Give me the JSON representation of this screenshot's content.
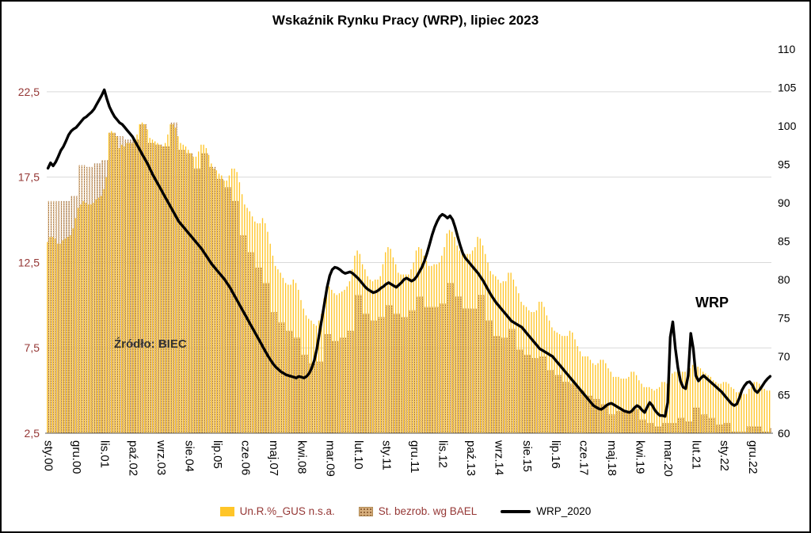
{
  "chart": {
    "title": "Wskaźnik Rynku Pracy (WRP), lipiec 2023",
    "source_annotation": "Źródło: BIEC",
    "line_annotation": "WRP",
    "legend": [
      {
        "label": "Un.R.%_GUS n.s.a.",
        "swatch": "bar-yellow",
        "color": "#FFC528",
        "text_color": "#953735"
      },
      {
        "label": "St. bezrob. wg BAEL",
        "swatch": "bar-tan-dotted",
        "color": "#D8B07E",
        "text_color": "#953735"
      },
      {
        "label": "WRP_2020",
        "swatch": "line-black",
        "color": "#000000",
        "text_color": "#000000"
      }
    ]
  },
  "chart_data": {
    "type": "combo",
    "x_unit": "month",
    "x_start": "sty.00",
    "x_end": "lip.23",
    "n_points": 283,
    "x_tick_step": 11,
    "x_tick_labels": [
      "sty.00",
      "gru.00",
      "lis.01",
      "paź.02",
      "wrz.03",
      "sie.04",
      "lip.05",
      "cze.06",
      "maj.07",
      "kwi.08",
      "mar.09",
      "lut.10",
      "sty.11",
      "gru.11",
      "lis.12",
      "paź.13",
      "wrz.14",
      "sie.15",
      "lip.16",
      "cze.17",
      "maj.18",
      "kwi.19",
      "mar.20",
      "lut.21",
      "sty.22",
      "gru.22"
    ],
    "left_axis": {
      "ticks": [
        "2,5",
        "7,5",
        "12,5",
        "17,5",
        "22,5"
      ],
      "tick_values": [
        2.5,
        7.5,
        12.5,
        17.5,
        22.5
      ],
      "range": [
        2.5,
        25
      ],
      "color": "#953735"
    },
    "right_axis": {
      "ticks": [
        "60",
        "65",
        "70",
        "75",
        "80",
        "85",
        "90",
        "95",
        "100",
        "105",
        "110"
      ],
      "tick_values": [
        60,
        65,
        70,
        75,
        80,
        85,
        90,
        95,
        100,
        105,
        110
      ],
      "range": [
        60,
        110
      ],
      "color": "#000000"
    },
    "grid": true,
    "legend_position": "bottom",
    "series": [
      {
        "name": "Un.R.%_GUS n.s.a.",
        "type": "bar",
        "axis": "left",
        "color": "#FFC528",
        "values": [
          13.7,
          14,
          14,
          13.9,
          13.6,
          13.6,
          13.8,
          13.9,
          14,
          14.1,
          14.5,
          15.1,
          15.7,
          15.9,
          16.1,
          16,
          15.9,
          15.9,
          16,
          16.2,
          16.3,
          16.4,
          16.8,
          17.5,
          20.1,
          20.2,
          20.1,
          19.9,
          19.2,
          19.4,
          19.3,
          19.5,
          19.5,
          19.5,
          19.7,
          20,
          20.6,
          20.7,
          20.6,
          20.3,
          19.8,
          19.7,
          19.6,
          19.5,
          19.4,
          19.3,
          19.5,
          20,
          20.6,
          20.6,
          20.4,
          19.9,
          19.5,
          19.4,
          19.3,
          19.1,
          18.9,
          18.7,
          18.7,
          19,
          19.4,
          19.4,
          19.2,
          18.8,
          18.3,
          18,
          17.9,
          17.7,
          17.6,
          17.3,
          17.3,
          17.6,
          18,
          18,
          17.8,
          17.2,
          16.5,
          15.9,
          15.7,
          15.5,
          15.2,
          14.9,
          14.8,
          14.8,
          15.1,
          14.8,
          14.3,
          13.6,
          12.9,
          12.3,
          12.1,
          11.9,
          11.6,
          11.3,
          11.2,
          11.2,
          11.5,
          11.3,
          10.9,
          10.3,
          9.8,
          9.4,
          9.2,
          9.1,
          8.9,
          8.8,
          9.1,
          9.5,
          10.4,
          10.9,
          11.1,
          10.9,
          10.7,
          10.6,
          10.7,
          10.8,
          10.9,
          11.1,
          11.4,
          12.1,
          12.9,
          13.2,
          13,
          12.4,
          12.1,
          11.7,
          11.5,
          11.4,
          11.5,
          11.5,
          11.7,
          12.4,
          13.1,
          13.4,
          13.3,
          12.8,
          12.4,
          11.9,
          11.8,
          11.8,
          11.8,
          11.8,
          12.1,
          12.5,
          13.2,
          13.4,
          13.3,
          12.9,
          12.6,
          12.3,
          12.3,
          12.4,
          12.4,
          12.5,
          12.9,
          13.4,
          14.2,
          14.4,
          14.3,
          14,
          13.5,
          13.2,
          13.1,
          13,
          13,
          13,
          13.2,
          13.4,
          14,
          13.9,
          13.5,
          13,
          12.5,
          12,
          11.8,
          11.7,
          11.5,
          11.3,
          11.4,
          11.4,
          11.9,
          11.9,
          11.5,
          11.1,
          10.7,
          10.2,
          10,
          9.9,
          9.7,
          9.6,
          9.6,
          9.7,
          10.2,
          10.2,
          9.9,
          9.4,
          9.1,
          8.7,
          8.5,
          8.4,
          8.3,
          8.2,
          8.2,
          8.2,
          8.5,
          8.4,
          8,
          7.6,
          7.3,
          7,
          7,
          7,
          6.8,
          6.6,
          6.5,
          6.6,
          6.8,
          6.8,
          6.6,
          6.3,
          6.1,
          5.8,
          5.8,
          5.8,
          5.7,
          5.7,
          5.7,
          5.8,
          6.1,
          6.1,
          5.9,
          5.6,
          5.4,
          5.2,
          5.2,
          5.2,
          5.1,
          5,
          5.1,
          5.2,
          5.5,
          5.5,
          5.4,
          5.8,
          6,
          6.1,
          6.1,
          6.1,
          6.1,
          6.1,
          6.1,
          6.3,
          6.5,
          6.6,
          6.4,
          6.3,
          6.1,
          6,
          5.9,
          5.8,
          5.6,
          5.5,
          5.4,
          5.4,
          5.5,
          5.5,
          5.4,
          5.2,
          5.1,
          4.9,
          4.9,
          4.8,
          4.8,
          4.8,
          5.1,
          5.2,
          5.5,
          5.5,
          5.4,
          5.2,
          5.1,
          5,
          5
        ]
      },
      {
        "name": "St. bezrob. wg BAEL",
        "type": "bar",
        "axis": "left",
        "color": "#D8B07E",
        "pattern": "dots",
        "values": [
          16.1,
          16.1,
          16.1,
          16.1,
          16.1,
          16.1,
          16.1,
          16.1,
          16.1,
          16.4,
          16.4,
          16.4,
          18.2,
          18.2,
          18.2,
          18.1,
          18.1,
          18.1,
          18.3,
          18.3,
          18.3,
          18.5,
          18.5,
          18.5,
          20.1,
          20.1,
          20.1,
          19.9,
          19.9,
          19.9,
          19.7,
          19.7,
          19.7,
          19.7,
          19.7,
          19.7,
          20.6,
          20.6,
          20.6,
          19.5,
          19.5,
          19.5,
          19.4,
          19.4,
          19.4,
          19.3,
          19.3,
          19.3,
          20.7,
          20.7,
          20.7,
          19.1,
          19.1,
          19.1,
          18.9,
          18.9,
          18.9,
          18,
          18,
          18,
          18.9,
          18.9,
          18.9,
          18.1,
          18.1,
          18.1,
          17.4,
          17.4,
          17.4,
          16.9,
          16.9,
          16.9,
          16.1,
          16.1,
          16.1,
          14.1,
          14.1,
          14.1,
          13.1,
          13.1,
          13.1,
          12.2,
          12.2,
          12.2,
          11.3,
          11.3,
          11.3,
          9.6,
          9.6,
          9.6,
          9,
          9,
          9,
          8.5,
          8.5,
          8.5,
          8.1,
          8.1,
          8.1,
          7.1,
          7.1,
          7.1,
          6.6,
          6.6,
          6.6,
          6.7,
          6.7,
          6.7,
          8.3,
          8.3,
          8.3,
          7.9,
          7.9,
          7.9,
          8.1,
          8.1,
          8.1,
          8.5,
          8.5,
          8.5,
          10.6,
          10.6,
          10.6,
          9.5,
          9.5,
          9.5,
          9.1,
          9.1,
          9.1,
          9.3,
          9.3,
          9.3,
          10,
          10,
          10,
          9.5,
          9.5,
          9.5,
          9.3,
          9.3,
          9.3,
          9.7,
          9.7,
          9.7,
          10.5,
          10.5,
          10.5,
          9.9,
          9.9,
          9.9,
          9.9,
          9.9,
          9.9,
          10.1,
          10.1,
          10.1,
          11.3,
          11.3,
          11.3,
          10.5,
          10.5,
          10.5,
          9.8,
          9.8,
          9.8,
          9.8,
          9.8,
          9.8,
          10.6,
          10.6,
          10.6,
          9.1,
          9.1,
          9.1,
          8.2,
          8.2,
          8.2,
          8.1,
          8.1,
          8.1,
          8.6,
          8.6,
          8.6,
          7.4,
          7.4,
          7.4,
          7.1,
          7.1,
          7.1,
          6.9,
          6.9,
          6.9,
          7,
          7,
          7,
          6.2,
          6.2,
          6.2,
          5.9,
          5.9,
          5.9,
          5.5,
          5.5,
          5.5,
          5.4,
          5.4,
          5.4,
          5,
          5,
          5,
          4.7,
          4.7,
          4.7,
          4.5,
          4.5,
          4.5,
          4.2,
          4.2,
          4.2,
          3.6,
          3.6,
          3.6,
          3.8,
          3.8,
          3.8,
          3.8,
          3.8,
          3.8,
          3.9,
          3.9,
          3.9,
          3.3,
          3.3,
          3.3,
          3.1,
          3.1,
          3.1,
          2.9,
          2.9,
          2.9,
          3.1,
          3.1,
          3.1,
          3.1,
          3.1,
          3.1,
          3.4,
          3.4,
          3.4,
          3.2,
          3.2,
          3.2,
          4,
          4,
          4,
          3.6,
          3.6,
          3.6,
          3.4,
          3.4,
          3.4,
          3,
          3,
          3,
          3.1,
          3.1,
          3.1,
          2.6,
          2.6,
          2.6,
          2.6,
          2.6,
          2.6,
          2.9,
          2.9,
          2.9,
          2.9,
          2.9,
          2.9,
          2.6,
          2.6,
          2.6,
          2.8
        ]
      },
      {
        "name": "WRP_2020",
        "type": "line",
        "axis": "right",
        "color": "#000000",
        "values": [
          94.5,
          95.2,
          94.8,
          95.3,
          96,
          96.8,
          97.3,
          98,
          98.8,
          99.3,
          99.6,
          99.8,
          100.2,
          100.6,
          101,
          101.2,
          101.5,
          101.8,
          102.2,
          102.8,
          103.4,
          104,
          104.7,
          103.5,
          102.5,
          101.8,
          101.2,
          100.8,
          100.4,
          100.2,
          99.8,
          99.4,
          99,
          98.6,
          98,
          97.4,
          96.8,
          96.2,
          95.6,
          95,
          94.3,
          93.6,
          93,
          92.4,
          91.8,
          91.2,
          90.6,
          90,
          89.4,
          88.8,
          88.2,
          87.6,
          87.2,
          86.8,
          86.4,
          86,
          85.6,
          85.2,
          84.8,
          84.4,
          84,
          83.5,
          83,
          82.5,
          82,
          81.6,
          81.2,
          80.8,
          80.4,
          80,
          79.5,
          79,
          78.4,
          77.8,
          77.2,
          76.6,
          76,
          75.4,
          74.8,
          74.2,
          73.6,
          73,
          72.4,
          71.8,
          71.2,
          70.6,
          70,
          69.5,
          69,
          68.6,
          68.3,
          68,
          67.8,
          67.6,
          67.5,
          67.4,
          67.3,
          67.2,
          67.4,
          67.3,
          67.2,
          67.4,
          67.8,
          68.5,
          69.5,
          71,
          73,
          75,
          77,
          79,
          80.5,
          81.3,
          81.6,
          81.5,
          81.3,
          81,
          80.8,
          80.9,
          81,
          80.8,
          80.5,
          80.2,
          79.8,
          79.4,
          79,
          78.7,
          78.5,
          78.3,
          78.4,
          78.6,
          78.9,
          79.1,
          79.4,
          79.6,
          79.4,
          79.2,
          79,
          79.3,
          79.6,
          80,
          80.2,
          80,
          79.8,
          80,
          80.4,
          81,
          81.6,
          82.4,
          83.4,
          84.6,
          85.8,
          86.8,
          87.6,
          88.2,
          88.5,
          88.3,
          88,
          88.3,
          87.8,
          86.8,
          85.6,
          84.4,
          83.4,
          82.8,
          82.4,
          82,
          81.6,
          81.2,
          80.8,
          80.3,
          79.8,
          79.2,
          78.6,
          78,
          77.5,
          77,
          76.6,
          76.2,
          75.8,
          75.4,
          75,
          74.6,
          74.4,
          74.2,
          74,
          73.8,
          73.4,
          73,
          72.6,
          72.2,
          71.8,
          71.4,
          71,
          70.8,
          70.6,
          70.4,
          70.2,
          70,
          69.6,
          69.2,
          68.8,
          68.4,
          68,
          67.6,
          67.2,
          66.8,
          66.4,
          66,
          65.6,
          65.2,
          64.8,
          64.4,
          64,
          63.6,
          63.4,
          63.2,
          63.1,
          63.3,
          63.6,
          63.8,
          63.9,
          63.7,
          63.5,
          63.3,
          63.1,
          62.9,
          62.8,
          62.7,
          62.9,
          63.3,
          63.6,
          63.4,
          63,
          62.7,
          63.4,
          64,
          63.6,
          63,
          62.6,
          62.3,
          62.3,
          62.2,
          64,
          72.5,
          74.5,
          71,
          68.5,
          66.8,
          66,
          65.8,
          67.5,
          73,
          71,
          67.5,
          66.8,
          67.2,
          67.5,
          67.2,
          66.9,
          66.6,
          66.3,
          66,
          65.7,
          65.4,
          65,
          64.6,
          64.2,
          63.8,
          63.6,
          63.8,
          64.6,
          65.6,
          66.2,
          66.6,
          66.7,
          66.3,
          65.6,
          65.3,
          65.7,
          66.2,
          66.7,
          67.1,
          67.4
        ]
      }
    ]
  }
}
